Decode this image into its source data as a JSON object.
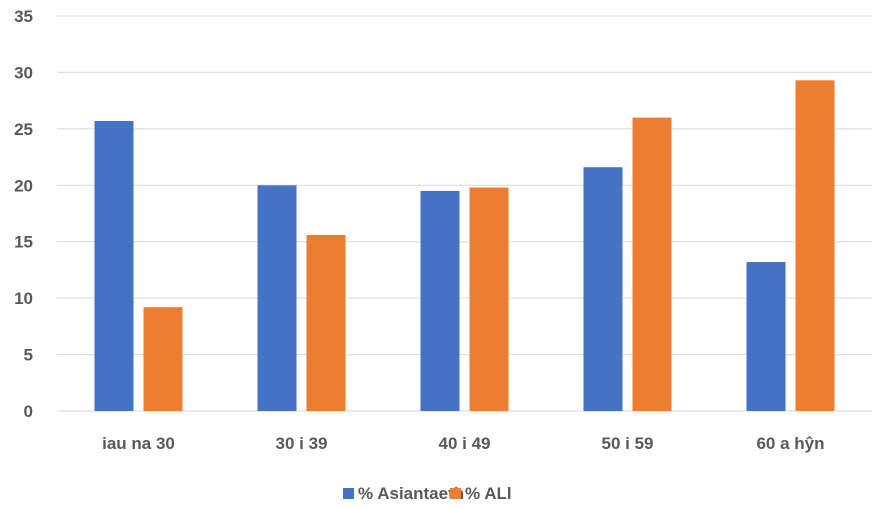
{
  "chart_data": {
    "type": "bar",
    "categories": [
      "iau na 30",
      "30 i 39",
      "40 i 49",
      "50 i 59",
      "60 a hŷn"
    ],
    "series": [
      {
        "name": "% Asiantaeth",
        "color": "#4472C4",
        "values": [
          25.7,
          20.0,
          19.5,
          21.6,
          13.2
        ]
      },
      {
        "name": "% ALl",
        "color": "#ED7D31",
        "values": [
          9.2,
          15.6,
          19.8,
          26.0,
          29.3
        ]
      }
    ],
    "title": "",
    "xlabel": "",
    "ylabel": "",
    "ylim": [
      0,
      35
    ],
    "yticks": [
      0,
      5,
      10,
      15,
      20,
      25,
      30,
      35
    ],
    "grid": true,
    "legend_position": "bottom"
  }
}
